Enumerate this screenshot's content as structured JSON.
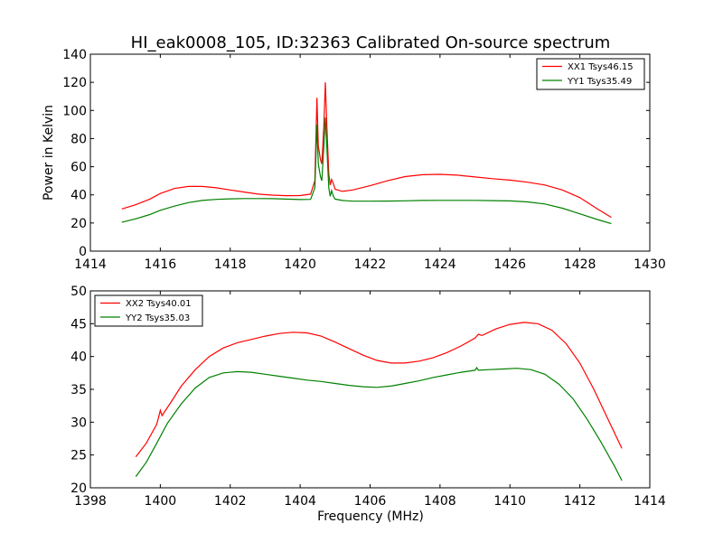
{
  "chart_data": [
    {
      "type": "line",
      "title": "HI_eak0008_105, ID:32363 Calibrated On-source spectrum",
      "xlabel": "",
      "ylabel": "Power in Kelvin",
      "xlim": [
        1414,
        1430
      ],
      "ylim": [
        0,
        140
      ],
      "xticks": [
        1414,
        1416,
        1418,
        1420,
        1422,
        1424,
        1426,
        1428,
        1430
      ],
      "yticks": [
        0,
        20,
        40,
        60,
        80,
        100,
        120,
        140
      ],
      "grid": false,
      "legend": "top-right",
      "series": [
        {
          "name": "XX1 Tsys46.15",
          "color": "#ff0000",
          "points": [
            [
              1414.9,
              30
            ],
            [
              1415.3,
              33
            ],
            [
              1415.7,
              37
            ],
            [
              1416.0,
              41
            ],
            [
              1416.4,
              44.5
            ],
            [
              1416.8,
              46
            ],
            [
              1417.2,
              46
            ],
            [
              1417.6,
              45
            ],
            [
              1418.0,
              43.5
            ],
            [
              1418.4,
              42
            ],
            [
              1418.8,
              40.5
            ],
            [
              1419.2,
              39.8
            ],
            [
              1419.6,
              39.4
            ],
            [
              1420.0,
              39.5
            ],
            [
              1420.3,
              40.5
            ],
            [
              1420.42,
              50
            ],
            [
              1420.48,
              109
            ],
            [
              1420.52,
              75
            ],
            [
              1420.58,
              65
            ],
            [
              1420.62,
              62
            ],
            [
              1420.68,
              90
            ],
            [
              1420.72,
              120
            ],
            [
              1420.76,
              92
            ],
            [
              1420.82,
              55
            ],
            [
              1420.86,
              47
            ],
            [
              1420.9,
              51
            ],
            [
              1420.95,
              48
            ],
            [
              1421.0,
              44
            ],
            [
              1421.2,
              42.5
            ],
            [
              1421.5,
              43.5
            ],
            [
              1422.0,
              46.5
            ],
            [
              1422.5,
              50
            ],
            [
              1423.0,
              53
            ],
            [
              1423.5,
              54.3
            ],
            [
              1424.0,
              54.6
            ],
            [
              1424.5,
              54
            ],
            [
              1425.0,
              52.7
            ],
            [
              1425.5,
              51.5
            ],
            [
              1426.0,
              50.5
            ],
            [
              1426.5,
              49
            ],
            [
              1427.0,
              47
            ],
            [
              1427.5,
              43.5
            ],
            [
              1428.0,
              38
            ],
            [
              1428.5,
              30
            ],
            [
              1428.9,
              24
            ]
          ]
        },
        {
          "name": "YY1 Tsys35.49",
          "color": "#008000",
          "points": [
            [
              1414.9,
              20.5
            ],
            [
              1415.3,
              23
            ],
            [
              1415.7,
              26
            ],
            [
              1416.0,
              29
            ],
            [
              1416.4,
              32
            ],
            [
              1416.8,
              34.5
            ],
            [
              1417.2,
              36
            ],
            [
              1417.6,
              36.8
            ],
            [
              1418.0,
              37.2
            ],
            [
              1418.4,
              37.4
            ],
            [
              1418.8,
              37.4
            ],
            [
              1419.2,
              37.3
            ],
            [
              1419.6,
              37
            ],
            [
              1420.0,
              36.7
            ],
            [
              1420.3,
              36.8
            ],
            [
              1420.42,
              45
            ],
            [
              1420.48,
              90
            ],
            [
              1420.52,
              62
            ],
            [
              1420.58,
              53
            ],
            [
              1420.62,
              50
            ],
            [
              1420.68,
              75
            ],
            [
              1420.72,
              95
            ],
            [
              1420.76,
              76
            ],
            [
              1420.82,
              45
            ],
            [
              1420.86,
              39
            ],
            [
              1420.9,
              43
            ],
            [
              1420.95,
              39
            ],
            [
              1421.0,
              37
            ],
            [
              1421.2,
              36
            ],
            [
              1421.5,
              35.5
            ],
            [
              1422.0,
              35.5
            ],
            [
              1422.5,
              35.6
            ],
            [
              1423.0,
              35.8
            ],
            [
              1423.5,
              36
            ],
            [
              1424.0,
              36.1
            ],
            [
              1424.5,
              36.1
            ],
            [
              1425.0,
              36.1
            ],
            [
              1425.5,
              35.9
            ],
            [
              1426.0,
              35.7
            ],
            [
              1426.5,
              35
            ],
            [
              1427.0,
              33.5
            ],
            [
              1427.5,
              30.5
            ],
            [
              1428.0,
              26.5
            ],
            [
              1428.5,
              22.5
            ],
            [
              1428.9,
              19.5
            ]
          ]
        }
      ]
    },
    {
      "type": "line",
      "title": "",
      "xlabel": "Frequency (MHz)",
      "ylabel": "",
      "xlim": [
        1398,
        1414
      ],
      "ylim": [
        20,
        50
      ],
      "xticks": [
        1398,
        1400,
        1402,
        1404,
        1406,
        1408,
        1410,
        1412,
        1414
      ],
      "yticks": [
        20,
        25,
        30,
        35,
        40,
        45,
        50
      ],
      "grid": false,
      "legend": "top-left",
      "series": [
        {
          "name": "XX2 Tsys40.01",
          "color": "#ff0000",
          "points": [
            [
              1399.3,
              24.7
            ],
            [
              1399.6,
              26.8
            ],
            [
              1399.9,
              29.7
            ],
            [
              1400.0,
              31.8
            ],
            [
              1400.05,
              31.0
            ],
            [
              1400.3,
              33
            ],
            [
              1400.6,
              35.5
            ],
            [
              1401.0,
              38
            ],
            [
              1401.4,
              40
            ],
            [
              1401.8,
              41.3
            ],
            [
              1402.2,
              42.1
            ],
            [
              1402.6,
              42.6
            ],
            [
              1403.0,
              43.1
            ],
            [
              1403.4,
              43.5
            ],
            [
              1403.8,
              43.7
            ],
            [
              1404.2,
              43.6
            ],
            [
              1404.6,
              43.1
            ],
            [
              1405.0,
              42.2
            ],
            [
              1405.4,
              41.2
            ],
            [
              1405.8,
              40.2
            ],
            [
              1406.2,
              39.4
            ],
            [
              1406.6,
              39
            ],
            [
              1407.0,
              39
            ],
            [
              1407.4,
              39.3
            ],
            [
              1407.8,
              39.8
            ],
            [
              1408.2,
              40.6
            ],
            [
              1408.6,
              41.6
            ],
            [
              1409.0,
              42.8
            ],
            [
              1409.1,
              43.4
            ],
            [
              1409.2,
              43.2
            ],
            [
              1409.6,
              44.2
            ],
            [
              1410.0,
              44.9
            ],
            [
              1410.4,
              45.2
            ],
            [
              1410.8,
              45
            ],
            [
              1411.2,
              44
            ],
            [
              1411.6,
              42
            ],
            [
              1412.0,
              39
            ],
            [
              1412.4,
              35
            ],
            [
              1412.8,
              30.5
            ],
            [
              1413.2,
              26
            ]
          ]
        },
        {
          "name": "YY2 Tsys35.03",
          "color": "#008000",
          "points": [
            [
              1399.3,
              21.7
            ],
            [
              1399.6,
              23.9
            ],
            [
              1399.9,
              26.8
            ],
            [
              1400.2,
              29.8
            ],
            [
              1400.6,
              32.8
            ],
            [
              1401.0,
              35.2
            ],
            [
              1401.4,
              36.8
            ],
            [
              1401.8,
              37.5
            ],
            [
              1402.2,
              37.7
            ],
            [
              1402.6,
              37.6
            ],
            [
              1403.0,
              37.3
            ],
            [
              1403.4,
              37
            ],
            [
              1403.8,
              36.7
            ],
            [
              1404.2,
              36.4
            ],
            [
              1404.6,
              36.2
            ],
            [
              1405.0,
              35.9
            ],
            [
              1405.4,
              35.6
            ],
            [
              1405.8,
              35.4
            ],
            [
              1406.2,
              35.3
            ],
            [
              1406.6,
              35.5
            ],
            [
              1407.0,
              35.9
            ],
            [
              1407.4,
              36.3
            ],
            [
              1407.8,
              36.8
            ],
            [
              1408.2,
              37.2
            ],
            [
              1408.6,
              37.6
            ],
            [
              1409.0,
              37.9
            ],
            [
              1409.05,
              38.3
            ],
            [
              1409.1,
              37.9
            ],
            [
              1409.4,
              38
            ],
            [
              1409.8,
              38.1
            ],
            [
              1410.2,
              38.2
            ],
            [
              1410.6,
              38
            ],
            [
              1411.0,
              37.3
            ],
            [
              1411.4,
              35.8
            ],
            [
              1411.8,
              33.6
            ],
            [
              1412.2,
              30.5
            ],
            [
              1412.6,
              27
            ],
            [
              1413.0,
              23.2
            ],
            [
              1413.2,
              21.1
            ]
          ]
        }
      ]
    }
  ]
}
